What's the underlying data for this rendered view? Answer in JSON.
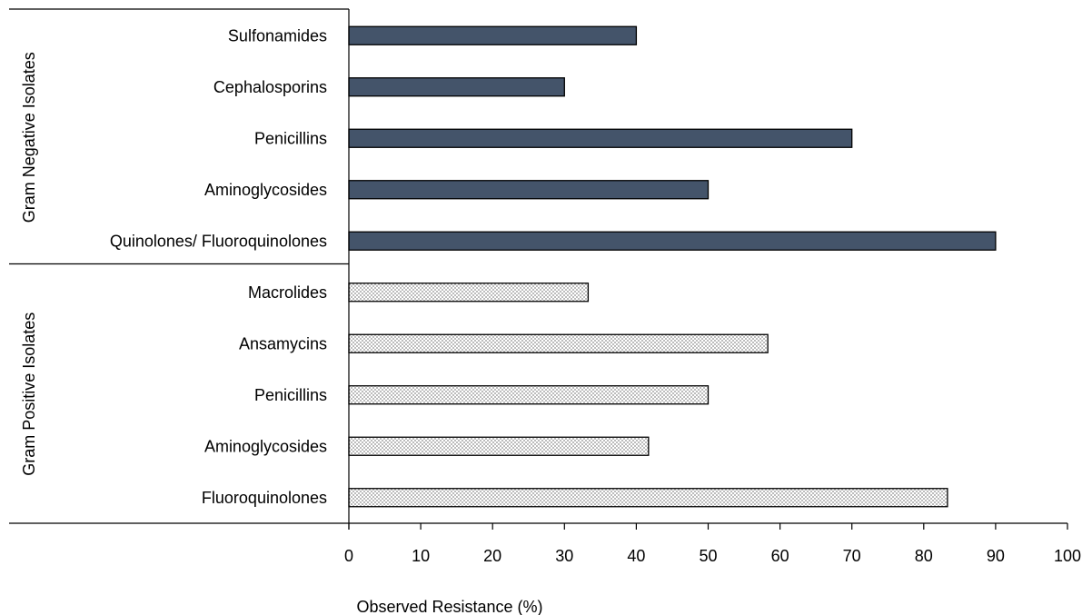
{
  "chart_data": {
    "type": "bar",
    "orientation": "horizontal",
    "xlabel": "Observed Resistance (%)",
    "xlim": [
      0,
      100
    ],
    "x_ticks": [
      0,
      10,
      20,
      30,
      40,
      50,
      60,
      70,
      80,
      90,
      100
    ],
    "grid": false,
    "groups": [
      {
        "name": "Gram Negative Isolates",
        "fill": "solid",
        "color": "#44546a",
        "categories": [
          "Sulfonamides",
          "Cephalosporins",
          "Penicillins",
          "Aminoglycosides",
          "Quinolones/ Fluoroquinolones"
        ],
        "values": [
          40,
          30,
          70,
          50,
          90
        ]
      },
      {
        "name": "Gram Positive Isolates",
        "fill": "dotted",
        "color": "#e6e6e6",
        "categories": [
          "Macrolides",
          "Ansamycins",
          "Penicillins",
          "Aminoglycosides",
          "Fluoroquinolones"
        ],
        "values": [
          33.3,
          58.3,
          50,
          41.7,
          83.3
        ]
      }
    ]
  }
}
